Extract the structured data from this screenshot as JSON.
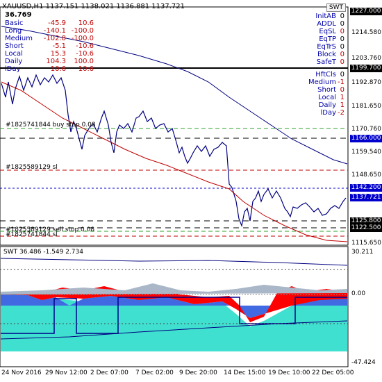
{
  "header": {
    "symbol_line": "XAUUSD,H1  1137.151 1138.021 1136.881 1137.721",
    "value": "36.769",
    "swt_button": "SWT"
  },
  "stats": [
    {
      "label": "Basic",
      "a": "-45.9",
      "b": "10.6"
    },
    {
      "label": "Long",
      "a": "-140.1",
      "b": "-100.0"
    },
    {
      "label": "Medium",
      "a": "-102.8",
      "b": "-100.0"
    },
    {
      "label": "Short",
      "a": "-5.1",
      "b": "-10.6"
    },
    {
      "label": "Local",
      "a": "15.3",
      "b": "-10.6"
    },
    {
      "label": "Daily",
      "a": "104.3",
      "b": "100.0"
    },
    {
      "label": "lDay",
      "a": "10.6",
      "b": "10.6"
    }
  ],
  "flags_top": [
    {
      "label": "InitAB",
      "value": "0"
    },
    {
      "label": "ADDL",
      "value": "0"
    },
    {
      "label": "EqSL",
      "value": "0"
    },
    {
      "label": "EqTP",
      "value": "0"
    },
    {
      "label": "EqTrS",
      "value": "0"
    },
    {
      "label": "Block",
      "value": "0"
    },
    {
      "label": "SafeT",
      "value": "0"
    }
  ],
  "flags_bottom": [
    {
      "label": "HftCls",
      "value": "0"
    },
    {
      "label": "Medium",
      "value": "-1"
    },
    {
      "label": "Short",
      "value": "0"
    },
    {
      "label": "Local",
      "value": "1"
    },
    {
      "label": "Daily",
      "value": "1"
    },
    {
      "label": "lDay",
      "value": "-2"
    }
  ],
  "price_axis": [
    "1227.000",
    "1214.580",
    "1203.760",
    "1192.870",
    "1181.650",
    "1170.760",
    "1159.540",
    "1148.650",
    "1137.721",
    "1125.800",
    "1115.650"
  ],
  "price_boxes": [
    {
      "label": "1227.000",
      "style": "black"
    },
    {
      "label": "1199.700",
      "style": "black"
    },
    {
      "label": "1166.000",
      "style": "blue"
    },
    {
      "label": "1142.200",
      "style": "blue"
    },
    {
      "label": "1137.721",
      "style": "blue"
    },
    {
      "label": "1125.800",
      "style": "black"
    },
    {
      "label": "1122.500",
      "style": "black"
    }
  ],
  "order_labels": [
    "#1825741844 buy stop 0.08",
    "#1825589129 sl",
    "#1825589129 sell stop 0.08",
    "#1825741844 sl"
  ],
  "indicator": {
    "title": "SWT  36.486  -1.549  2.734",
    "axis": [
      "30.211",
      "0.00",
      "-47.424"
    ]
  },
  "time_axis": [
    "24 Nov 2016",
    "29 Nov 12:00",
    "2 Dec 07:00",
    "7 Dec 02:00",
    "9 Dec 20:00",
    "14 Dec 15:00",
    "19 Dec 10:00",
    "22 Dec 05:00"
  ],
  "colors": {
    "price": "#00007f",
    "ma": "#c00000",
    "fill_teal": "#40e0d0",
    "fill_red": "#ff0000",
    "fill_blue": "#4169e1"
  }
}
